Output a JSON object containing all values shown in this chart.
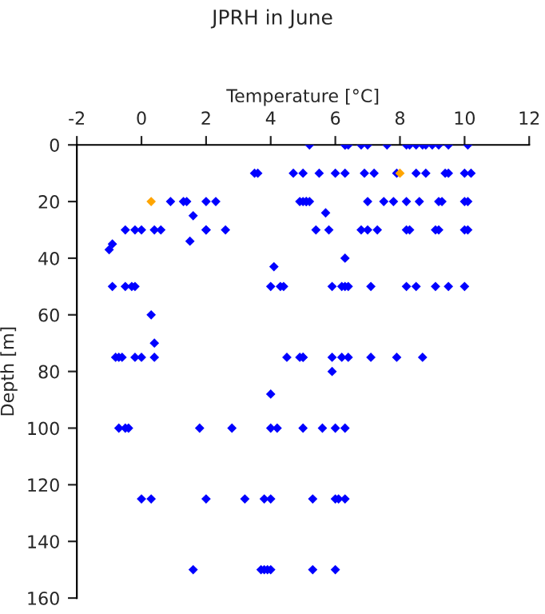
{
  "chart_data": {
    "type": "scatter",
    "title": "JPRH in June",
    "xlabel": "Temperature [°C]",
    "ylabel": "Depth [m]",
    "xlim": [
      -2,
      12
    ],
    "xticks": [
      -2,
      0,
      2,
      4,
      6,
      8,
      10,
      12
    ],
    "ylim": [
      160,
      0
    ],
    "yticks": [
      0,
      20,
      40,
      60,
      80,
      100,
      120,
      140,
      160
    ],
    "grid": false,
    "marker": "diamond",
    "series": [
      {
        "color": "#0000ff",
        "x": [
          5.2,
          6.3,
          6.3,
          6.4,
          6.8,
          7.0,
          7.6,
          8.2,
          8.3,
          8.5,
          8.7,
          8.8,
          9.0,
          9.2,
          9.5,
          10.1,
          3.5,
          3.6,
          4.7,
          5.0,
          5.5,
          6.0,
          6.3,
          6.9,
          7.2,
          7.9,
          8.5,
          8.8,
          9.4,
          9.5,
          10.0,
          10.2,
          0.9,
          1.3,
          1.4,
          2.0,
          2.3,
          4.9,
          5.0,
          5.1,
          5.1,
          5.2,
          7.0,
          7.5,
          7.8,
          8.2,
          8.6,
          9.2,
          9.3,
          10.0,
          10.1,
          1.6,
          5.7,
          -0.5,
          -0.2,
          0.0,
          0.4,
          0.6,
          2.0,
          2.0,
          2.6,
          5.4,
          5.8,
          6.8,
          7.0,
          7.3,
          8.2,
          8.3,
          9.1,
          9.2,
          10.0,
          10.1,
          1.5,
          -1.0,
          -0.9,
          6.3,
          4.1,
          -0.9,
          -0.5,
          -0.3,
          -0.2,
          4.0,
          4.3,
          4.4,
          5.9,
          6.2,
          6.3,
          6.4,
          7.1,
          8.2,
          8.5,
          9.1,
          9.5,
          10.0,
          0.3,
          0.4,
          -0.8,
          -0.7,
          -0.6,
          -0.2,
          0.0,
          0.4,
          4.5,
          4.9,
          5.0,
          5.0,
          5.9,
          6.2,
          6.4,
          7.1,
          7.9,
          8.7,
          5.9,
          4.0,
          -0.7,
          -0.5,
          -0.4,
          1.8,
          2.8,
          4.0,
          4.2,
          5.0,
          5.6,
          6.0,
          6.3,
          0.0,
          0.3,
          2.0,
          3.2,
          3.8,
          4.0,
          5.3,
          6.0,
          6.1,
          6.3,
          1.6,
          3.7,
          3.8,
          3.9,
          4.0,
          5.3,
          6.0
        ],
        "values": [
          0,
          0,
          0,
          0,
          0,
          0,
          0,
          0,
          0,
          0,
          0,
          0,
          0,
          0,
          0,
          0,
          10,
          10,
          10,
          10,
          10,
          10,
          10,
          10,
          10,
          10,
          10,
          10,
          10,
          10,
          10,
          10,
          20,
          20,
          20,
          20,
          20,
          20,
          20,
          20,
          20,
          20,
          20,
          20,
          20,
          20,
          20,
          20,
          20,
          20,
          20,
          25,
          24,
          30,
          30,
          30,
          30,
          30,
          30,
          30,
          30,
          30,
          30,
          30,
          30,
          30,
          30,
          30,
          30,
          30,
          30,
          30,
          34,
          37,
          35,
          40,
          43,
          50,
          50,
          50,
          50,
          50,
          50,
          50,
          50,
          50,
          50,
          50,
          50,
          50,
          50,
          50,
          50,
          50,
          60,
          70,
          75,
          75,
          75,
          75,
          75,
          75,
          75,
          75,
          75,
          75,
          75,
          75,
          75,
          75,
          75,
          75,
          80,
          88,
          100,
          100,
          100,
          100,
          100,
          100,
          100,
          100,
          100,
          100,
          100,
          125,
          125,
          125,
          125,
          125,
          125,
          125,
          125,
          125,
          125,
          150,
          150,
          150,
          150,
          150,
          150,
          150
        ]
      },
      {
        "color": "#ffa500",
        "x": [
          0.3,
          8.0
        ],
        "values": [
          20,
          10
        ]
      }
    ]
  }
}
